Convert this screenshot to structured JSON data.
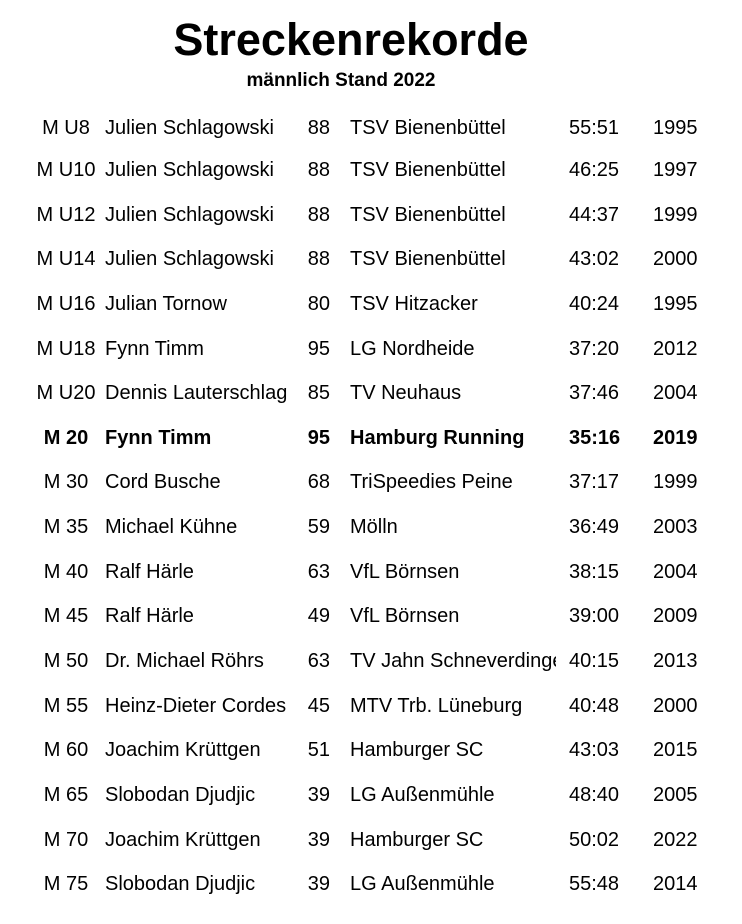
{
  "document": {
    "title": "Streckenrekorde",
    "subtitle": "männlich Stand 2022"
  },
  "records": [
    {
      "class": "M U8",
      "name": "Julien Schlagowski",
      "age": "88",
      "club": "TSV Bienenbüttel",
      "time": "55:51",
      "year": "1995"
    },
    {
      "class": "M U10",
      "name": "Julien Schlagowski",
      "age": "88",
      "club": "TSV Bienenbüttel",
      "time": "46:25",
      "year": "1997"
    },
    {
      "class": "M U12",
      "name": "Julien Schlagowski",
      "age": "88",
      "club": "TSV Bienenbüttel",
      "time": "44:37",
      "year": "1999"
    },
    {
      "class": "M U14",
      "name": "Julien Schlagowski",
      "age": "88",
      "club": "TSV Bienenbüttel",
      "time": "43:02",
      "year": "2000"
    },
    {
      "class": "M U16",
      "name": "Julian Tornow",
      "age": "80",
      "club": "TSV Hitzacker",
      "time": "40:24",
      "year": "1995"
    },
    {
      "class": "M U18",
      "name": "Fynn Timm",
      "age": "95",
      "club": "LG Nordheide",
      "time": "37:20",
      "year": "2012"
    },
    {
      "class": "M U20",
      "name": "Dennis Lauterschlag",
      "age": "85",
      "club": "TV Neuhaus",
      "time": "37:46",
      "year": "2004"
    },
    {
      "class": "M 20",
      "name": "Fynn Timm",
      "age": "95",
      "club": "Hamburg Running",
      "time": "35:16",
      "year": "2019",
      "bold": true
    },
    {
      "class": "M 30",
      "name": "Cord Busche",
      "age": "68",
      "club": "TriSpeedies Peine",
      "time": "37:17",
      "year": "1999"
    },
    {
      "class": "M 35",
      "name": "Michael Kühne",
      "age": "59",
      "club": "Mölln",
      "time": "36:49",
      "year": "2003"
    },
    {
      "class": "M 40",
      "name": "Ralf Härle",
      "age": "63",
      "club": "VfL Börnsen",
      "time": "38:15",
      "year": "2004"
    },
    {
      "class": "M 45",
      "name": "Ralf Härle",
      "age": "49",
      "club": "VfL Börnsen",
      "time": "39:00",
      "year": "2009"
    },
    {
      "class": "M 50",
      "name": "Dr. Michael Röhrs",
      "age": "63",
      "club": "TV Jahn Schneverdingen",
      "time": "40:15",
      "year": "2013"
    },
    {
      "class": "M 55",
      "name": "Heinz-Dieter Cordes",
      "age": "45",
      "club": "MTV Trb.  Lüneburg",
      "time": "40:48",
      "year": "2000"
    },
    {
      "class": "M 60",
      "name": "Joachim Krüttgen",
      "age": "51",
      "club": "Hamburger SC",
      "time": "43:03",
      "year": "2015"
    },
    {
      "class": "M 65",
      "name": "Slobodan Djudjic",
      "age": "39",
      "club": "LG Außenmühle",
      "time": "48:40",
      "year": "2005"
    },
    {
      "class": "M 70",
      "name": "Joachim Krüttgen",
      "age": "39",
      "club": "Hamburger SC",
      "time": "50:02",
      "year": "2022"
    },
    {
      "class": "M 75",
      "name": "Slobodan Djudjic",
      "age": "39",
      "club": "LG Außenmühle",
      "time": "55:48",
      "year": "2014"
    }
  ]
}
